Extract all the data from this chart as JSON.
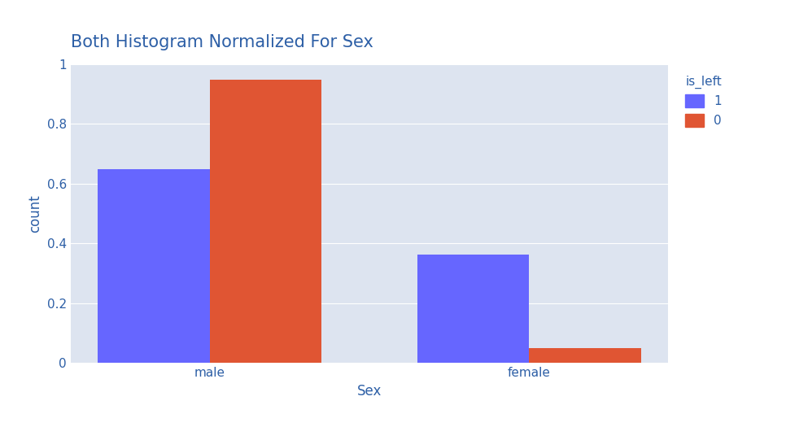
{
  "title": "Both Histogram Normalized For Sex",
  "title_color": "#2d5fa6",
  "title_fontsize": 15,
  "xlabel": "Sex",
  "ylabel": "count",
  "xlabel_color": "#2d5fa6",
  "ylabel_color": "#2d5fa6",
  "background_color": "#e8edf5",
  "plot_bg_color": "#dde4f0",
  "categories": [
    "male",
    "female"
  ],
  "series": [
    {
      "label": "1",
      "color": "#6666ff",
      "values": [
        0.648,
        0.362
      ]
    },
    {
      "label": "0",
      "color": "#e05533",
      "values": [
        0.948,
        0.05
      ]
    }
  ],
  "legend_title": "is_left",
  "legend_title_color": "#2d5fa6",
  "legend_label_color": "#2d5fa6",
  "ylim": [
    0,
    1.0
  ],
  "yticks": [
    0,
    0.2,
    0.4,
    0.6,
    0.8,
    1.0
  ],
  "bar_width": 0.35,
  "tick_color": "#2d5fa6",
  "grid_color": "#ffffff",
  "figsize": [
    9.66,
    5.25
  ],
  "dpi": 100
}
